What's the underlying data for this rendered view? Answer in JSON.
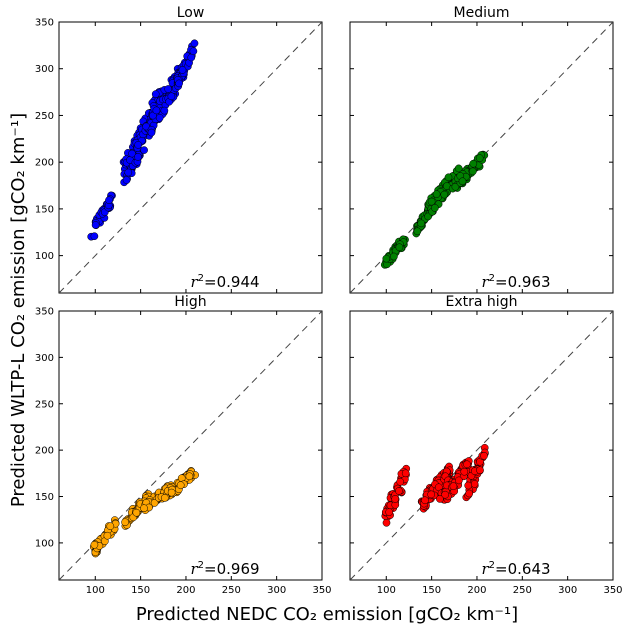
{
  "chart_data": {
    "type": "scatter",
    "layout": "2x2 grid, shared axes",
    "xlabel": "Predicted NEDC CO₂ emission [gCO₂ km⁻¹]",
    "ylabel": "Predicted WLTP-L  CO₂ emission [gCO₂ km⁻¹]",
    "xlim": [
      60,
      350
    ],
    "ylim": [
      60,
      350
    ],
    "x_ticks": [
      100,
      150,
      200,
      250,
      300,
      350
    ],
    "y_ticks": [
      100,
      150,
      200,
      250,
      300,
      350
    ],
    "diagonal": "dashed 1:1 line",
    "r2_prefix": "r",
    "r2_suffix": "2",
    "panels": [
      {
        "title": "Low",
        "color": "#0000ff",
        "r2": "=0.944",
        "clusters": [
          {
            "x": [
              96,
              118
            ],
            "y": [
              123,
              162
            ],
            "n": 35
          },
          {
            "x": [
              133,
              172
            ],
            "y": [
              186,
              268
            ],
            "n": 130
          },
          {
            "x": [
              158,
              196
            ],
            "y": [
              238,
              295
            ],
            "n": 90
          },
          {
            "x": [
              190,
              210
            ],
            "y": [
              285,
              324
            ],
            "n": 45
          }
        ]
      },
      {
        "title": "Medium",
        "color": "#008000",
        "r2": "=0.963",
        "clusters": [
          {
            "x": [
              98,
              120
            ],
            "y": [
              90,
              117
            ],
            "n": 40
          },
          {
            "x": [
              133,
              148
            ],
            "y": [
              127,
              150
            ],
            "n": 40
          },
          {
            "x": [
              145,
              180
            ],
            "y": [
              148,
              188
            ],
            "n": 70
          },
          {
            "x": [
              175,
              208
            ],
            "y": [
              175,
              205
            ],
            "n": 60
          }
        ]
      },
      {
        "title": "High",
        "color": "#ffa500",
        "r2": "=0.969",
        "clusters": [
          {
            "x": [
              98,
              122
            ],
            "y": [
              90,
              122
            ],
            "n": 45
          },
          {
            "x": [
              133,
              160
            ],
            "y": [
              122,
              150
            ],
            "n": 50
          },
          {
            "x": [
              155,
              185
            ],
            "y": [
              138,
              162
            ],
            "n": 55
          },
          {
            "x": [
              178,
              210
            ],
            "y": [
              150,
              178
            ],
            "n": 55
          }
        ]
      },
      {
        "title": "Extra high",
        "color": "#ff0000",
        "r2": "=0.643",
        "clusters": [
          {
            "x": [
              98,
              122
            ],
            "y": [
              126,
              175
            ],
            "n": 45
          },
          {
            "x": [
              138,
              170
            ],
            "y": [
              140,
              177
            ],
            "n": 90
          },
          {
            "x": [
              160,
              190
            ],
            "y": [
              145,
              185
            ],
            "n": 70
          },
          {
            "x": [
              188,
              210
            ],
            "y": [
              152,
              200
            ],
            "n": 45
          }
        ]
      }
    ]
  }
}
